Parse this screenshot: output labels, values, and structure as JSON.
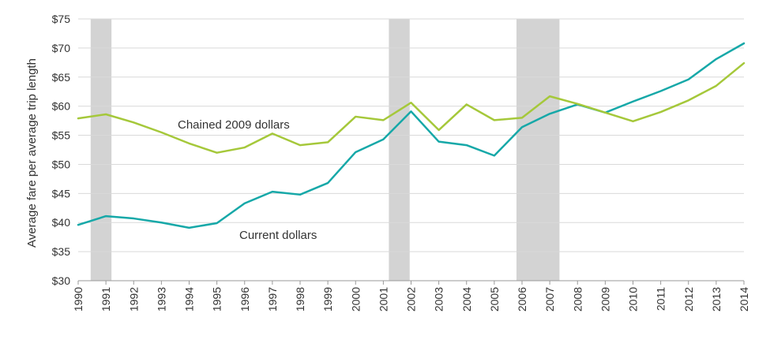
{
  "chart_data": {
    "type": "line",
    "xlabel": "",
    "ylabel": "Average fare per average trip length",
    "x": [
      "1990",
      "1991",
      "1992",
      "1993",
      "1994",
      "1995",
      "1996",
      "1997",
      "1998",
      "1999",
      "2000",
      "2001",
      "2002",
      "2003",
      "2004",
      "2005",
      "2006",
      "2007",
      "2008",
      "2009",
      "2010",
      "2011",
      "2012",
      "2013",
      "2014"
    ],
    "ylim": [
      30,
      75
    ],
    "yticks": [
      30,
      35,
      40,
      45,
      50,
      55,
      60,
      65,
      70,
      75
    ],
    "ytick_labels": [
      "$30",
      "$35",
      "$40",
      "$45",
      "$50",
      "$55",
      "$60",
      "$65",
      "$70",
      "$75"
    ],
    "grid": "horizontal",
    "recession_bands": [
      [
        0.45,
        1.2
      ],
      [
        11.2,
        11.95
      ],
      [
        15.8,
        17.35
      ]
    ],
    "series": [
      {
        "name": "Current dollars",
        "color": "#16a8a8",
        "values": [
          39.6,
          41.1,
          40.7,
          40.0,
          39.1,
          39.9,
          43.3,
          45.3,
          44.8,
          46.8,
          52.1,
          54.3,
          59.1,
          53.9,
          53.3,
          51.5,
          56.4,
          58.7,
          60.3,
          58.9,
          60.8,
          62.6,
          64.6,
          68.1,
          70.8
        ]
      },
      {
        "name": "Chained 2009 dollars",
        "color": "#a5c83a",
        "values": [
          57.9,
          58.6,
          57.2,
          55.5,
          53.6,
          52.0,
          52.9,
          55.3,
          53.3,
          53.8,
          58.2,
          57.6,
          60.6,
          55.9,
          60.3,
          57.6,
          58.0,
          61.7,
          60.4,
          58.9,
          57.4,
          59.0,
          61.0,
          63.5,
          67.4
        ]
      }
    ]
  }
}
